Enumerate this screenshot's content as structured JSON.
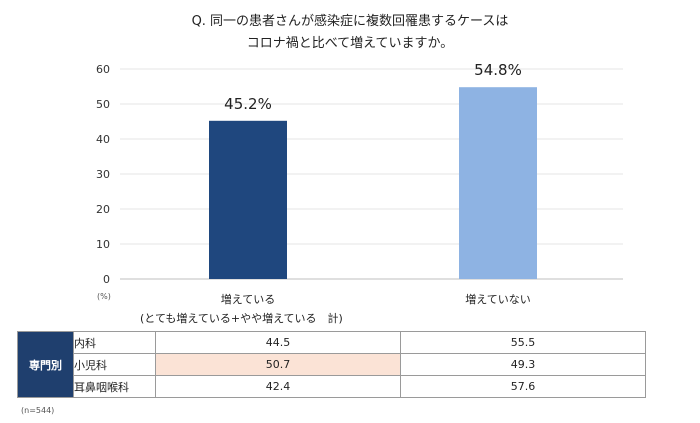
{
  "title_line1": "Q. 同一の患者さんが感染症に複数回罹患するケースは",
  "title_line2": "コロナ禍と比べて増えていますか。",
  "unit_label": "(%)",
  "chart_data": {
    "type": "bar",
    "categories": [
      "増えている",
      "増えていない"
    ],
    "category_sub": "(とても増えている+やや増えている　計)",
    "values": [
      45.2,
      54.8
    ],
    "value_labels": [
      "45.2%",
      "54.8%"
    ],
    "colors": [
      "#1f477e",
      "#8eb3e3"
    ],
    "ylim": [
      0,
      60
    ],
    "yticks": [
      0,
      10,
      20,
      30,
      40,
      50,
      60
    ],
    "grid": true
  },
  "table": {
    "group_label": "専門別",
    "rows": [
      {
        "label": "内科",
        "values": [
          "44.5",
          "55.5"
        ]
      },
      {
        "label": "小児科",
        "values": [
          "50.7",
          "49.3"
        ]
      },
      {
        "label": "耳鼻咽喉科",
        "values": [
          "42.4",
          "57.6"
        ]
      }
    ]
  },
  "footnote": "(n=544)"
}
